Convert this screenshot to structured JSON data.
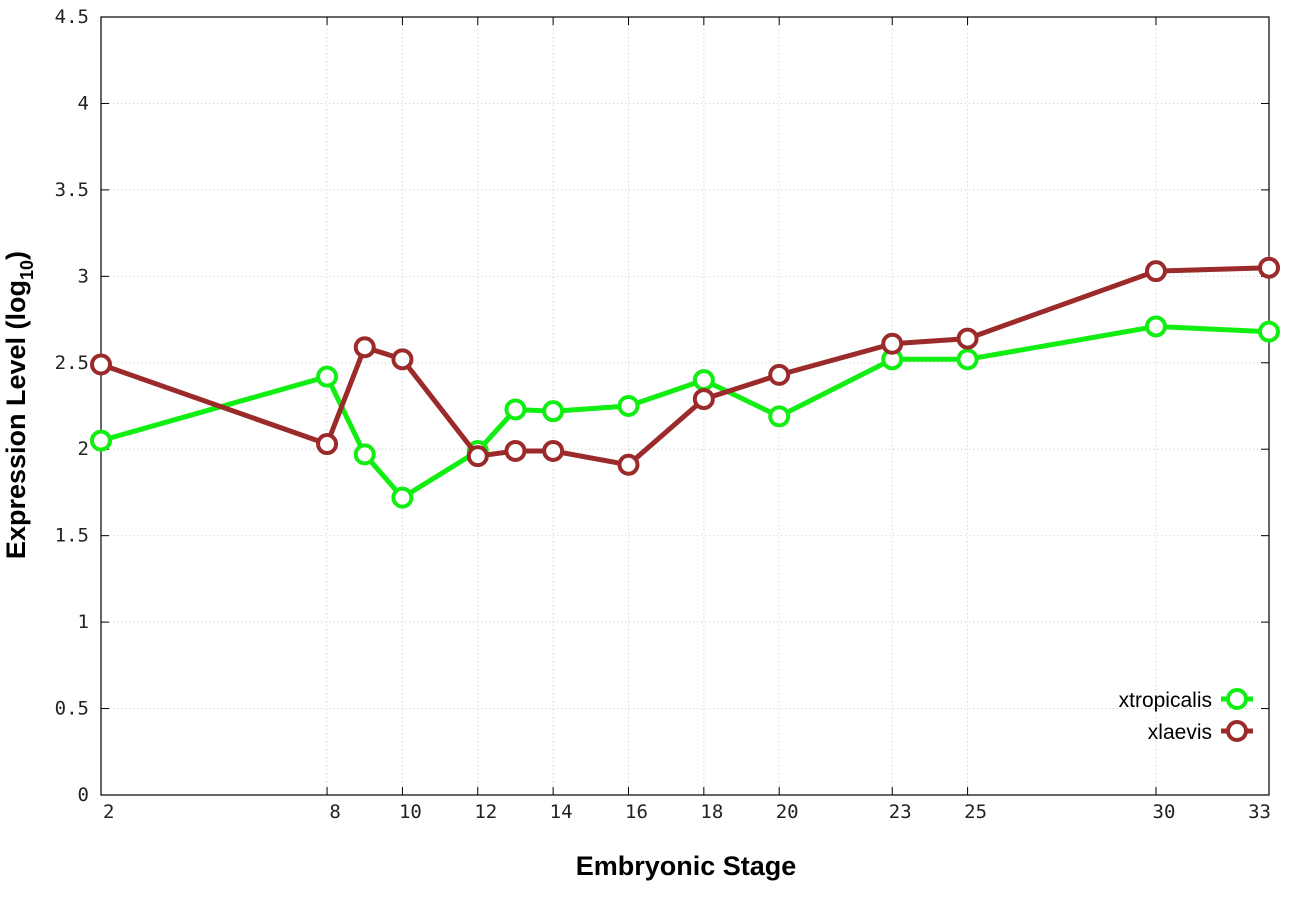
{
  "chart_data": {
    "type": "line",
    "xlabel": "Embryonic Stage",
    "ylabel_main": "Expression Level (log",
    "ylabel_sub": "10",
    "ylabel_close": ")",
    "ylim": [
      0,
      4.5
    ],
    "yticks": [
      0,
      0.5,
      1,
      1.5,
      2,
      2.5,
      3,
      3.5,
      4,
      4.5
    ],
    "ytick_labels": [
      "0",
      "0.5",
      "1",
      "1.5",
      "2",
      "2.5",
      "3",
      "3.5",
      "4",
      "4.5"
    ],
    "x": [
      2,
      8,
      9,
      10,
      12,
      13,
      14,
      16,
      18,
      20,
      23,
      25,
      30,
      33
    ],
    "xticks": [
      2,
      8,
      10,
      12,
      14,
      16,
      18,
      20,
      23,
      25,
      30,
      33
    ],
    "xtick_labels": [
      "2",
      "8",
      "10",
      "12",
      "14",
      "16",
      "18",
      "20",
      "23",
      "25",
      "30",
      "33"
    ],
    "grid": true,
    "legend_position": "bottom-right",
    "series": [
      {
        "name": "xtropicalis",
        "color": "#11ee11",
        "marker": "open-circle",
        "values": [
          2.05,
          2.42,
          1.97,
          1.72,
          1.99,
          2.23,
          2.22,
          2.25,
          2.4,
          2.19,
          2.52,
          2.52,
          2.71,
          2.68
        ]
      },
      {
        "name": "xlaevis",
        "color": "#9b2a2a",
        "marker": "open-circle",
        "values": [
          2.49,
          2.03,
          2.59,
          2.52,
          1.96,
          1.99,
          1.99,
          1.91,
          2.29,
          2.43,
          2.61,
          2.64,
          3.03,
          3.05
        ]
      }
    ]
  }
}
